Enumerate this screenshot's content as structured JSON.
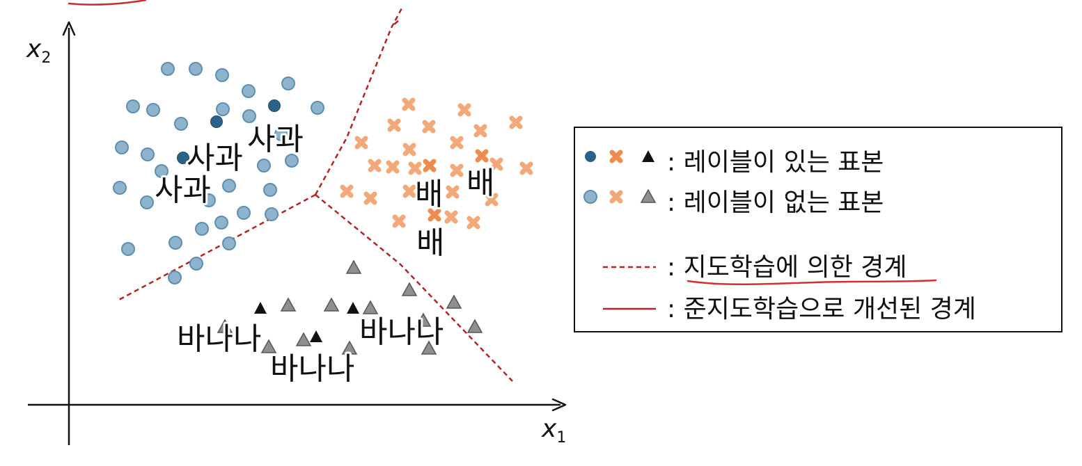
{
  "axes": {
    "x_label": "x",
    "x_sub": "1",
    "y_label": "x",
    "y_sub": "2"
  },
  "class_labels": {
    "apple": [
      "사과",
      "사과",
      "사과"
    ],
    "pear": [
      "배",
      "배",
      "배"
    ],
    "banana": [
      "바나나",
      "바나나",
      "바나나"
    ]
  },
  "legend": {
    "labeled": ": 레이블이 있는 표본",
    "unlabeled": ": 레이블이 없는 표본",
    "supervised_boundary": ": 지도학습에 의한 경계",
    "semi_supervised_boundary": ": 준지도학습으로 개선된 경계"
  },
  "colors": {
    "apple_labeled": "#2b6288",
    "apple_unlabeled": "#8eb3cc",
    "apple_unlabeled_stroke": "#5e8fb0",
    "pear": "#ef8c4d",
    "banana_labeled": "#111111",
    "banana_unlabeled": "#8f8f8f",
    "boundary": "#b32424"
  },
  "icons": {
    "apple": "circle-marker",
    "pear": "x-marker",
    "banana": "triangle-marker"
  }
}
